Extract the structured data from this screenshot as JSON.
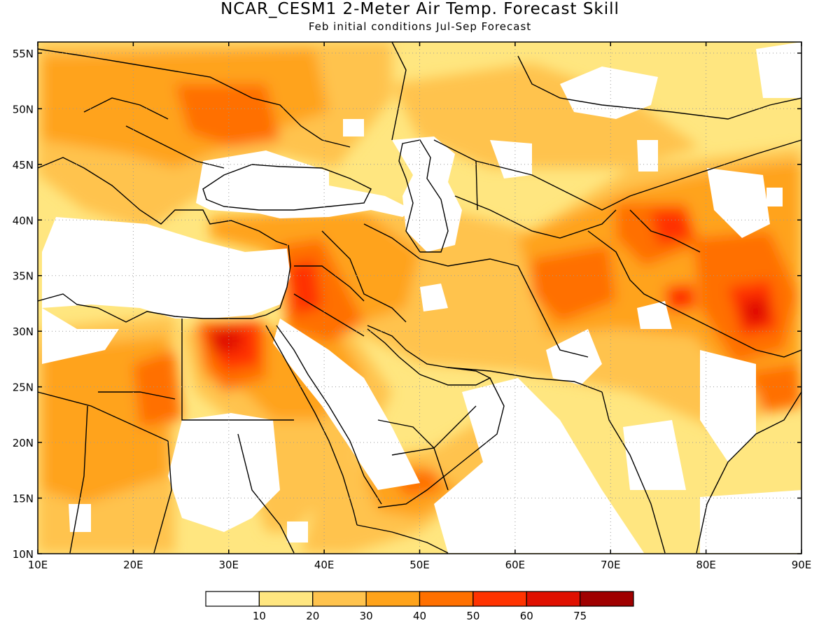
{
  "title": "NCAR_CESM1 2-Meter Air Temp. Forecast Skill",
  "subtitle": "Feb initial conditions  Jul-Sep Forecast",
  "map": {
    "lon_range": [
      10,
      90
    ],
    "lat_range": [
      10,
      56
    ],
    "lon_ticks": [
      "10E",
      "20E",
      "30E",
      "40E",
      "50E",
      "60E",
      "70E",
      "80E",
      "90E"
    ],
    "lat_ticks": [
      "10N",
      "15N",
      "20N",
      "25N",
      "30N",
      "35N",
      "40N",
      "45N",
      "50N",
      "55N"
    ],
    "gridlines": "dotted"
  },
  "legend": {
    "levels": [
      "10",
      "20",
      "30",
      "40",
      "50",
      "60",
      "75"
    ],
    "colors": [
      "#ffffff",
      "#ffe680",
      "#ffc34d",
      "#ffa31a",
      "#ff7000",
      "#ff3300",
      "#e01000",
      "#a00000"
    ]
  }
}
